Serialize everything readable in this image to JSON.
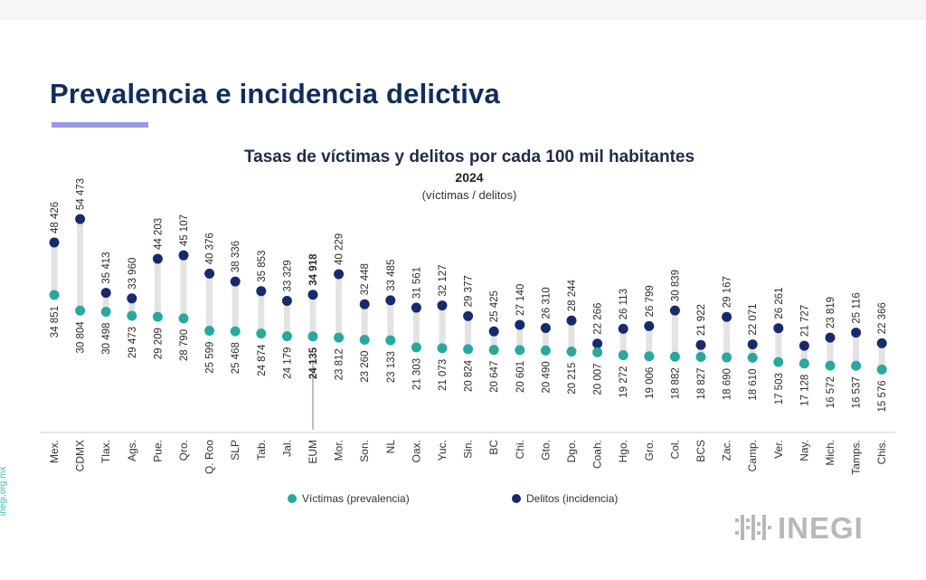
{
  "page": {
    "title": "Prevalencia e incidencia delictiva",
    "social_handle": "inegi.org.mx",
    "logo": "INEGI"
  },
  "colors": {
    "victimas": "#2aa8a0",
    "delitos": "#172a6b",
    "connector": "#e3e3e3",
    "title": "#112d5c",
    "accent_bar": "#9a9ae6"
  },
  "chart_data": {
    "type": "scatter",
    "title": "Tasas de víctimas y delitos por cada 100 mil habitantes",
    "subtitle_year": "2024",
    "subtitle_units": "(víctimas / delitos)",
    "categories": [
      "Mex.",
      "CDMX",
      "Tlax.",
      "Ags.",
      "Pue.",
      "Qro.",
      "Q. Roo",
      "SLP",
      "Tab.",
      "Jal.",
      "EUM",
      "Mor.",
      "Son.",
      "NL",
      "Oax.",
      "Yuc.",
      "Sin.",
      "BC",
      "Chi.",
      "Gto.",
      "Dgo.",
      "Coah.",
      "Hgo.",
      "Gro.",
      "Col.",
      "BCS",
      "Zac.",
      "Camp.",
      "Ver.",
      "Nay.",
      "Mich.",
      "Tamps.",
      "Chis."
    ],
    "highlight_category": "EUM",
    "series": [
      {
        "name": "Víctimas (prevalencia)",
        "values": [
          34851,
          30804,
          30498,
          29473,
          29209,
          28790,
          25599,
          25468,
          24874,
          24179,
          24135,
          23812,
          23260,
          23133,
          21303,
          21073,
          20824,
          20647,
          20601,
          20490,
          20215,
          20007,
          19272,
          19006,
          18882,
          18827,
          18690,
          18610,
          17503,
          17128,
          16572,
          16537,
          15576
        ],
        "labels": [
          "34 851",
          "30 804",
          "30 498",
          "29 473",
          "29 209",
          "28 790",
          "25 599",
          "25 468",
          "24 874",
          "24 179",
          "24 135",
          "23 812",
          "23 260",
          "23 133",
          "21 303",
          "21 073",
          "20 824",
          "20 647",
          "20 601",
          "20 490",
          "20 215",
          "20 007",
          "19 272",
          "19 006",
          "18 882",
          "18 827",
          "18 690",
          "18 610",
          "17 503",
          "17 128",
          "16 572",
          "16 537",
          "15 576"
        ]
      },
      {
        "name": "Delitos (incidencia)",
        "values": [
          48426,
          54473,
          35413,
          33960,
          44203,
          45107,
          40376,
          38336,
          35853,
          33329,
          34918,
          40229,
          32448,
          33485,
          31561,
          32127,
          29377,
          25425,
          27140,
          26310,
          28244,
          22266,
          26113,
          26799,
          30839,
          21922,
          29167,
          22071,
          26261,
          21727,
          23819,
          25116,
          22366
        ],
        "labels": [
          "48 426",
          "54 473",
          "35 413",
          "33 960",
          "44 203",
          "45 107",
          "40 376",
          "38 336",
          "35 853",
          "33 329",
          "34 918",
          "40 229",
          "32 448",
          "33 485",
          "31 561",
          "32 127",
          "29 377",
          "25 425",
          "27 140",
          "26 310",
          "28 244",
          "22 266",
          "26 113",
          "26 799",
          "30 839",
          "21 922",
          "29 167",
          "22 071",
          "26 261",
          "21 727",
          "23 819",
          "25 116",
          "22 366"
        ]
      }
    ],
    "ylim": [
      0,
      60000
    ],
    "grid": false,
    "legend_position": "bottom"
  }
}
